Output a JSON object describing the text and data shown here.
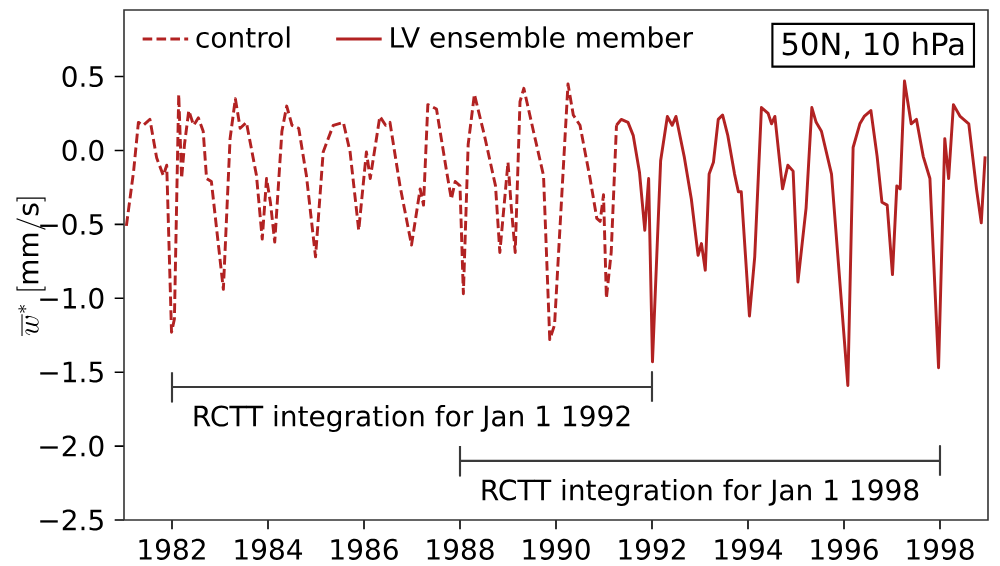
{
  "chart_data": {
    "type": "line",
    "ylabel": "\\overline{w}^{*}\\;[\\mathrm{mm/s}]",
    "xlim": [
      1981,
      1999
    ],
    "ylim": [
      -2.5,
      0.95
    ],
    "xticks": [
      1982,
      1984,
      1986,
      1988,
      1990,
      1992,
      1994,
      1996,
      1998
    ],
    "yticks": [
      {
        "value": -2.5,
        "label": "−2.5"
      },
      {
        "value": -2.0,
        "label": "−2.0"
      },
      {
        "value": -1.5,
        "label": "−1.5"
      },
      {
        "value": -1.0,
        "label": "−1.0"
      },
      {
        "value": -0.5,
        "label": "−0.5"
      },
      {
        "value": 0.0,
        "label": "0.0"
      },
      {
        "value": 0.5,
        "label": "0.5"
      }
    ],
    "legend": "top left",
    "series": [
      {
        "name": "control",
        "color": "#b22222",
        "line_style": "dashed",
        "x": [
          1981.05,
          1981.2,
          1981.3,
          1981.4,
          1981.54,
          1981.68,
          1981.82,
          1981.89,
          1981.99,
          1982.05,
          1982.14,
          1982.2,
          1982.26,
          1982.35,
          1982.45,
          1982.55,
          1982.65,
          1982.72,
          1982.82,
          1983.07,
          1983.21,
          1983.32,
          1983.42,
          1983.55,
          1983.76,
          1983.88,
          1983.97,
          1984.05,
          1984.14,
          1984.29,
          1984.39,
          1984.5,
          1984.64,
          1984.8,
          1984.99,
          1985.15,
          1985.36,
          1985.57,
          1985.71,
          1985.89,
          1986.05,
          1986.13,
          1986.33,
          1986.45,
          1986.54,
          1986.75,
          1986.99,
          1987.17,
          1987.24,
          1987.33,
          1987.51,
          1987.72,
          1987.82,
          1987.9,
          1988.0,
          1988.07,
          1988.17,
          1988.3,
          1988.51,
          1988.74,
          1988.83,
          1989.0,
          1989.07,
          1989.15,
          1989.25,
          1989.33,
          1989.53,
          1989.74,
          1989.87,
          1989.97,
          1990.25,
          1990.36,
          1990.5,
          1990.71,
          1990.85,
          1990.92,
          1990.99,
          1991.05,
          1991.15,
          1991.26
        ],
        "values": [
          -0.51,
          -0.14,
          0.19,
          0.17,
          0.21,
          -0.05,
          -0.17,
          -0.1,
          -1.23,
          -1.14,
          0.38,
          -0.19,
          0.04,
          0.27,
          0.17,
          0.22,
          0.13,
          -0.19,
          -0.21,
          -0.94,
          0.08,
          0.35,
          0.15,
          0.19,
          -0.17,
          -0.6,
          -0.19,
          -0.35,
          -0.62,
          0.13,
          0.3,
          0.17,
          0.15,
          -0.17,
          -0.72,
          -0.01,
          0.17,
          0.19,
          -0.01,
          -0.54,
          -0.01,
          -0.19,
          0.23,
          0.17,
          0.19,
          -0.24,
          -0.64,
          -0.26,
          -0.37,
          0.31,
          0.28,
          -0.14,
          -0.33,
          -0.21,
          -0.24,
          -0.97,
          0.04,
          0.38,
          0.1,
          -0.24,
          -0.69,
          -0.08,
          -0.39,
          -0.69,
          0.33,
          0.42,
          0.13,
          -0.17,
          -1.28,
          -1.18,
          0.45,
          0.24,
          0.17,
          -0.19,
          -0.46,
          -0.48,
          -0.3,
          -1.0,
          -0.69,
          0.17
        ]
      },
      {
        "name": "LV ensemble member",
        "color": "#b22222",
        "line_style": "solid",
        "x": [
          1991.26,
          1991.36,
          1991.5,
          1991.61,
          1991.74,
          1991.85,
          1991.93,
          1992.01,
          1992.18,
          1992.32,
          1992.42,
          1992.5,
          1992.67,
          1992.82,
          1992.96,
          1993.03,
          1993.11,
          1993.19,
          1993.28,
          1993.38,
          1993.47,
          1993.58,
          1993.72,
          1993.8,
          1993.86,
          1994.03,
          1994.14,
          1994.28,
          1994.42,
          1994.49,
          1994.56,
          1994.72,
          1994.83,
          1994.94,
          1995.04,
          1995.21,
          1995.33,
          1995.42,
          1995.53,
          1995.74,
          1996.08,
          1996.19,
          1996.33,
          1996.42,
          1996.56,
          1996.69,
          1996.79,
          1996.9,
          1997.01,
          1997.1,
          1997.17,
          1997.26,
          1997.4,
          1997.51,
          1997.65,
          1997.79,
          1997.97,
          1998.1,
          1998.18,
          1998.28,
          1998.42,
          1998.6,
          1998.76,
          1998.86,
          1998.94
        ],
        "values": [
          0.17,
          0.21,
          0.19,
          0.1,
          -0.15,
          -0.54,
          -0.19,
          -1.43,
          -0.07,
          0.23,
          0.17,
          0.23,
          -0.04,
          -0.33,
          -0.71,
          -0.63,
          -0.81,
          -0.16,
          -0.08,
          0.21,
          0.24,
          0.1,
          -0.16,
          -0.28,
          -0.28,
          -1.12,
          -0.72,
          0.29,
          0.25,
          0.18,
          0.23,
          -0.26,
          -0.1,
          -0.14,
          -0.89,
          -0.39,
          0.29,
          0.19,
          0.13,
          -0.16,
          -1.59,
          0.02,
          0.18,
          0.23,
          0.27,
          -0.04,
          -0.35,
          -0.37,
          -0.84,
          -0.24,
          -0.26,
          0.47,
          0.18,
          0.21,
          -0.04,
          -0.19,
          -1.47,
          0.08,
          -0.19,
          0.31,
          0.23,
          0.18,
          -0.26,
          -0.49,
          -0.04
        ]
      },
      {
        "color": "#3a3a3a",
        "line_style": "solid",
        "x": [
          1982,
          1982,
          1982,
          1992,
          1992,
          1992
        ],
        "values": [
          -1.5,
          -1.7,
          -1.6,
          -1.6,
          -1.5,
          -1.7
        ]
      },
      {
        "color": "#3a3a3a",
        "line_style": "solid",
        "x": [
          1988,
          1988,
          1988,
          1998,
          1998,
          1998
        ],
        "values": [
          -2.0,
          -2.2,
          -2.1,
          -2.1,
          -2.0,
          -2.2
        ]
      }
    ],
    "annotations": [
      "50N, 10 hPa",
      "RCTT integration for Jan 1 1992",
      "RCTT integration for Jan 1 1998"
    ]
  }
}
